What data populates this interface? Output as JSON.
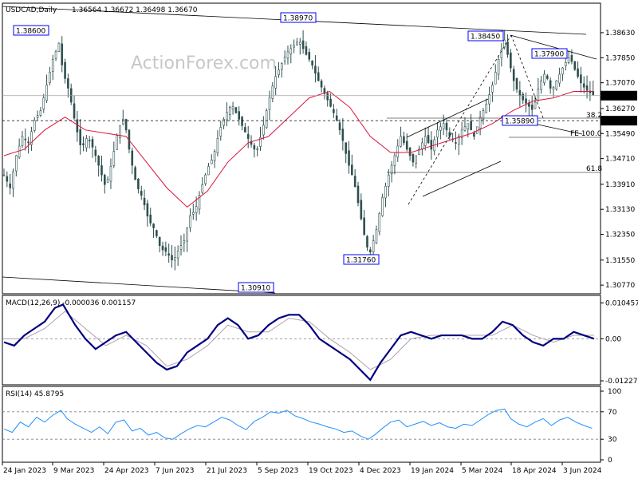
{
  "header": {
    "symbol_tf": "USDCAD,Daily",
    "ohlc": "1.36564 1.36672 1.36498 1.36670"
  },
  "watermark": "ActionForex.com",
  "chart_data": [
    {
      "type": "candlestick",
      "name": "price",
      "x_tick_labels": [
        "24 Jan 2023",
        "9 Mar 2023",
        "24 Apr 2023",
        "7 Jun 2023",
        "21 Jul 2023",
        "5 Sep 2023",
        "19 Oct 2023",
        "4 Dec 2023",
        "19 Jan 2024",
        "5 Mar 2024",
        "18 Apr 2024",
        "3 Jun 2024"
      ],
      "y_tick_labels": [
        "1.38630",
        "1.37850",
        "1.37070",
        "1.36270",
        "1.35490",
        "1.34710",
        "1.33910",
        "1.33130",
        "1.32350",
        "1.31550",
        "1.30770"
      ],
      "ylim": [
        1.3055,
        1.3915
      ],
      "current_price": "1.36670",
      "marked_level": "1.35890",
      "close_path": [
        [
          0,
          1.342
        ],
        [
          6,
          1.338
        ],
        [
          12,
          1.348
        ],
        [
          18,
          1.354
        ],
        [
          24,
          1.352
        ],
        [
          30,
          1.359
        ],
        [
          36,
          1.362
        ],
        [
          42,
          1.37
        ],
        [
          48,
          1.378
        ],
        [
          54,
          1.383
        ],
        [
          58,
          1.374
        ],
        [
          64,
          1.368
        ],
        [
          70,
          1.358
        ],
        [
          76,
          1.35
        ],
        [
          82,
          1.354
        ],
        [
          88,
          1.35
        ],
        [
          94,
          1.344
        ],
        [
          100,
          1.338
        ],
        [
          106,
          1.346
        ],
        [
          112,
          1.356
        ],
        [
          118,
          1.36
        ],
        [
          124,
          1.348
        ],
        [
          130,
          1.339
        ],
        [
          136,
          1.335
        ],
        [
          142,
          1.328
        ],
        [
          148,
          1.325
        ],
        [
          154,
          1.319
        ],
        [
          160,
          1.318
        ],
        [
          166,
          1.315
        ],
        [
          172,
          1.319
        ],
        [
          178,
          1.322
        ],
        [
          182,
          1.329
        ],
        [
          188,
          1.331
        ],
        [
          194,
          1.338
        ],
        [
          200,
          1.344
        ],
        [
          206,
          1.348
        ],
        [
          212,
          1.356
        ],
        [
          218,
          1.361
        ],
        [
          224,
          1.364
        ],
        [
          230,
          1.36
        ],
        [
          236,
          1.356
        ],
        [
          242,
          1.352
        ],
        [
          248,
          1.349
        ],
        [
          254,
          1.356
        ],
        [
          260,
          1.365
        ],
        [
          266,
          1.372
        ],
        [
          272,
          1.376
        ],
        [
          278,
          1.38
        ],
        [
          284,
          1.382
        ],
        [
          290,
          1.384
        ],
        [
          296,
          1.38
        ],
        [
          302,
          1.377
        ],
        [
          308,
          1.372
        ],
        [
          314,
          1.368
        ],
        [
          320,
          1.364
        ],
        [
          326,
          1.36
        ],
        [
          332,
          1.354
        ],
        [
          338,
          1.346
        ],
        [
          344,
          1.34
        ],
        [
          350,
          1.33
        ],
        [
          356,
          1.32
        ],
        [
          360,
          1.318
        ],
        [
          366,
          1.325
        ],
        [
          372,
          1.335
        ],
        [
          378,
          1.342
        ],
        [
          384,
          1.348
        ],
        [
          390,
          1.354
        ],
        [
          396,
          1.35
        ],
        [
          402,
          1.346
        ],
        [
          408,
          1.35
        ],
        [
          414,
          1.354
        ],
        [
          420,
          1.35
        ],
        [
          426,
          1.356
        ],
        [
          432,
          1.358
        ],
        [
          438,
          1.354
        ],
        [
          444,
          1.352
        ],
        [
          450,
          1.356
        ],
        [
          456,
          1.358
        ],
        [
          462,
          1.354
        ],
        [
          468,
          1.36
        ],
        [
          474,
          1.364
        ],
        [
          480,
          1.37
        ],
        [
          486,
          1.378
        ],
        [
          492,
          1.384
        ],
        [
          496,
          1.378
        ],
        [
          502,
          1.37
        ],
        [
          508,
          1.366
        ],
        [
          514,
          1.364
        ],
        [
          520,
          1.362
        ],
        [
          526,
          1.37
        ],
        [
          532,
          1.374
        ],
        [
          538,
          1.368
        ],
        [
          544,
          1.372
        ],
        [
          550,
          1.376
        ],
        [
          556,
          1.379
        ],
        [
          562,
          1.374
        ],
        [
          568,
          1.37
        ],
        [
          574,
          1.368
        ],
        [
          580,
          1.3667
        ]
      ],
      "ma_path": [
        [
          0,
          1.348
        ],
        [
          20,
          1.35
        ],
        [
          40,
          1.356
        ],
        [
          60,
          1.36
        ],
        [
          80,
          1.356
        ],
        [
          100,
          1.355
        ],
        [
          120,
          1.354
        ],
        [
          140,
          1.346
        ],
        [
          160,
          1.338
        ],
        [
          180,
          1.332
        ],
        [
          200,
          1.337
        ],
        [
          220,
          1.346
        ],
        [
          240,
          1.352
        ],
        [
          260,
          1.354
        ],
        [
          280,
          1.36
        ],
        [
          300,
          1.366
        ],
        [
          320,
          1.368
        ],
        [
          340,
          1.363
        ],
        [
          360,
          1.354
        ],
        [
          380,
          1.349
        ],
        [
          400,
          1.349
        ],
        [
          420,
          1.351
        ],
        [
          440,
          1.353
        ],
        [
          460,
          1.355
        ],
        [
          480,
          1.358
        ],
        [
          500,
          1.362
        ],
        [
          520,
          1.365
        ],
        [
          540,
          1.366
        ],
        [
          560,
          1.368
        ],
        [
          580,
          1.368
        ]
      ],
      "annotations": [
        "1.38600",
        "1.38970",
        "1.38450",
        "1.37900",
        "1.35890",
        "1.31760",
        "1.30910"
      ],
      "fib_labels": [
        "38.2",
        "FE 100.0",
        "61.8"
      ]
    },
    {
      "type": "line",
      "name": "macd",
      "label": "MACD(12,26,9) -0.000036 0.001157",
      "y_tick_labels": [
        "0.010457",
        "0.00",
        "-0.012276"
      ],
      "ylim": [
        -0.0125,
        0.0108
      ],
      "macd_path": [
        [
          0,
          -0.001
        ],
        [
          10,
          -0.002
        ],
        [
          20,
          0.001
        ],
        [
          30,
          0.003
        ],
        [
          40,
          0.005
        ],
        [
          50,
          0.009
        ],
        [
          58,
          0.01
        ],
        [
          64,
          0.007
        ],
        [
          70,
          0.004
        ],
        [
          80,
          0.0
        ],
        [
          90,
          -0.003
        ],
        [
          100,
          -0.001
        ],
        [
          110,
          0.001
        ],
        [
          120,
          0.002
        ],
        [
          130,
          -0.001
        ],
        [
          140,
          -0.004
        ],
        [
          150,
          -0.007
        ],
        [
          160,
          -0.009
        ],
        [
          170,
          -0.008
        ],
        [
          180,
          -0.004
        ],
        [
          190,
          -0.002
        ],
        [
          200,
          0.0
        ],
        [
          210,
          0.004
        ],
        [
          220,
          0.006
        ],
        [
          230,
          0.004
        ],
        [
          240,
          0.0
        ],
        [
          250,
          0.001
        ],
        [
          260,
          0.004
        ],
        [
          270,
          0.006
        ],
        [
          280,
          0.007
        ],
        [
          290,
          0.007
        ],
        [
          300,
          0.004
        ],
        [
          310,
          0.0
        ],
        [
          320,
          -0.002
        ],
        [
          330,
          -0.004
        ],
        [
          340,
          -0.006
        ],
        [
          350,
          -0.009
        ],
        [
          360,
          -0.012
        ],
        [
          370,
          -0.007
        ],
        [
          380,
          -0.003
        ],
        [
          390,
          0.001
        ],
        [
          400,
          0.002
        ],
        [
          410,
          0.001
        ],
        [
          420,
          0.0
        ],
        [
          430,
          0.001
        ],
        [
          440,
          0.001
        ],
        [
          450,
          0.001
        ],
        [
          460,
          0.0
        ],
        [
          470,
          0.0
        ],
        [
          480,
          0.002
        ],
        [
          490,
          0.005
        ],
        [
          500,
          0.004
        ],
        [
          510,
          0.001
        ],
        [
          520,
          -0.001
        ],
        [
          530,
          -0.002
        ],
        [
          540,
          0.0
        ],
        [
          550,
          0.0
        ],
        [
          560,
          0.002
        ],
        [
          570,
          0.001
        ],
        [
          580,
          0.0
        ]
      ],
      "signal_path": [
        [
          0,
          0.0
        ],
        [
          20,
          0.0
        ],
        [
          40,
          0.003
        ],
        [
          60,
          0.008
        ],
        [
          80,
          0.003
        ],
        [
          100,
          -0.002
        ],
        [
          120,
          0.001
        ],
        [
          140,
          -0.002
        ],
        [
          160,
          -0.008
        ],
        [
          180,
          -0.006
        ],
        [
          200,
          -0.002
        ],
        [
          220,
          0.004
        ],
        [
          240,
          0.002
        ],
        [
          260,
          0.002
        ],
        [
          280,
          0.006
        ],
        [
          300,
          0.005
        ],
        [
          320,
          0.0
        ],
        [
          340,
          -0.004
        ],
        [
          360,
          -0.009
        ],
        [
          380,
          -0.006
        ],
        [
          400,
          0.0
        ],
        [
          420,
          0.001
        ],
        [
          440,
          0.001
        ],
        [
          460,
          0.001
        ],
        [
          480,
          0.001
        ],
        [
          500,
          0.004
        ],
        [
          520,
          0.001
        ],
        [
          540,
          -0.001
        ],
        [
          560,
          0.001
        ],
        [
          580,
          0.001
        ]
      ]
    },
    {
      "type": "line",
      "name": "rsi",
      "label": "RSI(14) 45.8795",
      "y_tick_labels": [
        "100",
        "70",
        "30",
        "0"
      ],
      "ylim": [
        0,
        100
      ],
      "levels": [
        70,
        30
      ],
      "rsi_path": [
        [
          0,
          45
        ],
        [
          8,
          40
        ],
        [
          16,
          55
        ],
        [
          24,
          48
        ],
        [
          32,
          62
        ],
        [
          40,
          55
        ],
        [
          48,
          65
        ],
        [
          56,
          72
        ],
        [
          62,
          60
        ],
        [
          70,
          52
        ],
        [
          78,
          46
        ],
        [
          86,
          40
        ],
        [
          94,
          48
        ],
        [
          102,
          38
        ],
        [
          110,
          55
        ],
        [
          118,
          58
        ],
        [
          126,
          42
        ],
        [
          134,
          46
        ],
        [
          142,
          36
        ],
        [
          150,
          40
        ],
        [
          158,
          32
        ],
        [
          166,
          30
        ],
        [
          174,
          38
        ],
        [
          182,
          45
        ],
        [
          190,
          50
        ],
        [
          198,
          48
        ],
        [
          206,
          55
        ],
        [
          214,
          62
        ],
        [
          222,
          58
        ],
        [
          230,
          50
        ],
        [
          238,
          44
        ],
        [
          246,
          56
        ],
        [
          254,
          62
        ],
        [
          262,
          70
        ],
        [
          270,
          68
        ],
        [
          278,
          72
        ],
        [
          286,
          64
        ],
        [
          294,
          60
        ],
        [
          302,
          55
        ],
        [
          310,
          52
        ],
        [
          318,
          48
        ],
        [
          326,
          45
        ],
        [
          334,
          40
        ],
        [
          342,
          42
        ],
        [
          350,
          35
        ],
        [
          358,
          30
        ],
        [
          364,
          36
        ],
        [
          372,
          46
        ],
        [
          380,
          55
        ],
        [
          388,
          58
        ],
        [
          396,
          48
        ],
        [
          404,
          52
        ],
        [
          412,
          56
        ],
        [
          420,
          50
        ],
        [
          428,
          54
        ],
        [
          436,
          48
        ],
        [
          444,
          46
        ],
        [
          452,
          52
        ],
        [
          460,
          50
        ],
        [
          468,
          58
        ],
        [
          476,
          66
        ],
        [
          484,
          72
        ],
        [
          492,
          74
        ],
        [
          498,
          60
        ],
        [
          506,
          52
        ],
        [
          514,
          48
        ],
        [
          522,
          55
        ],
        [
          530,
          60
        ],
        [
          538,
          50
        ],
        [
          546,
          58
        ],
        [
          554,
          62
        ],
        [
          562,
          55
        ],
        [
          570,
          50
        ],
        [
          578,
          46
        ]
      ]
    }
  ],
  "colors": {
    "candle": "#2f4f4f",
    "ma": "#dc143c",
    "macd": "#000080",
    "signal": "#b0a0b0",
    "rsi": "#1e90ff",
    "grid_dash": "#808080",
    "label_box": "#0000ff"
  }
}
